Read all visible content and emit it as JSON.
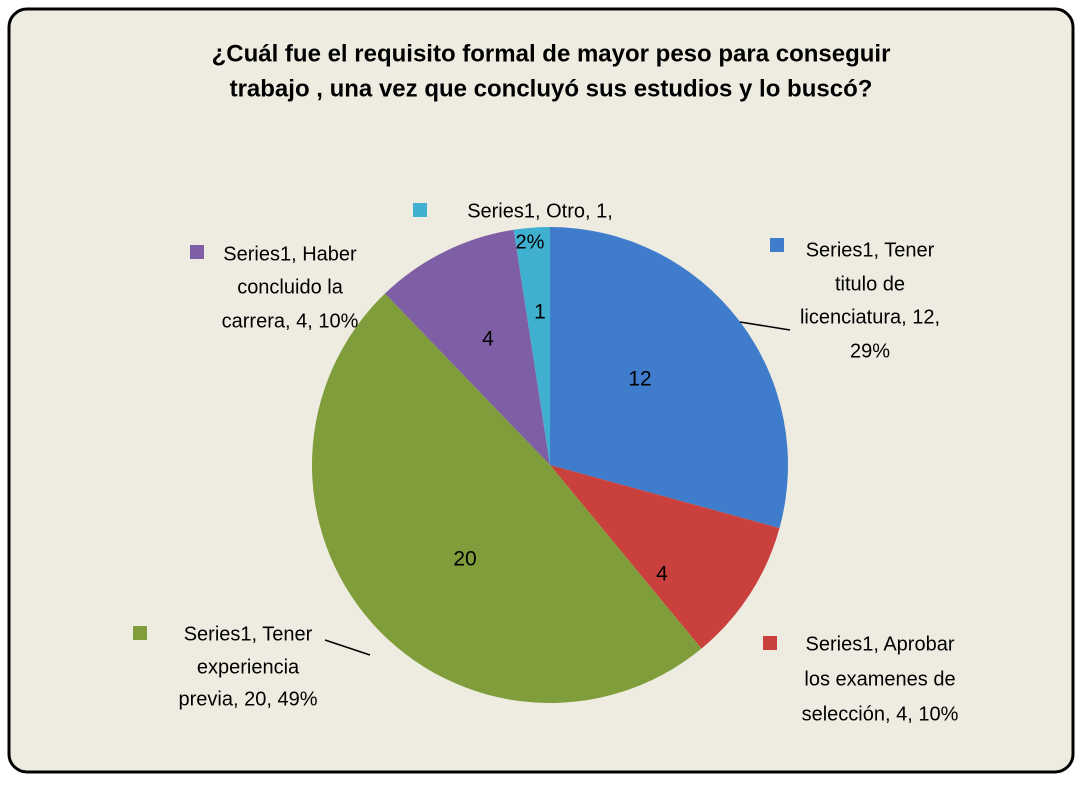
{
  "chart_data": {
    "type": "pie",
    "title": [
      "¿Cuál fue el requisito formal de mayor peso para conseguir",
      "trabajo , una vez que concluyó sus estudios y lo buscó?"
    ],
    "series_name": "Series1",
    "categories": [
      "Tener titulo de licenciatura",
      "Aprobar los examenes de selección",
      "Tener experiencia previa",
      "Haber concluido la carrera",
      "Otro"
    ],
    "values": [
      12,
      4,
      20,
      4,
      1
    ],
    "percentages": [
      29,
      10,
      49,
      10,
      2
    ],
    "value_labels": [
      [
        "Series1, Tener",
        "titulo de",
        "licenciatura, 12,",
        "29%"
      ],
      [
        "Series1, Aprobar",
        "los examenes de",
        "selección, 4, 10%"
      ],
      [
        "Series1, Tener",
        "experiencia",
        "previa, 20, 49%"
      ],
      [
        "Series1, Haber",
        "concluido la",
        "carrera, 4, 10%"
      ],
      [
        "Series1, Otro, 1,",
        "2%"
      ]
    ],
    "colors": [
      "#3f7ccc",
      "#c9403c",
      "#7f9d3a",
      "#7e5fa5",
      "#3fb0cf"
    ]
  }
}
